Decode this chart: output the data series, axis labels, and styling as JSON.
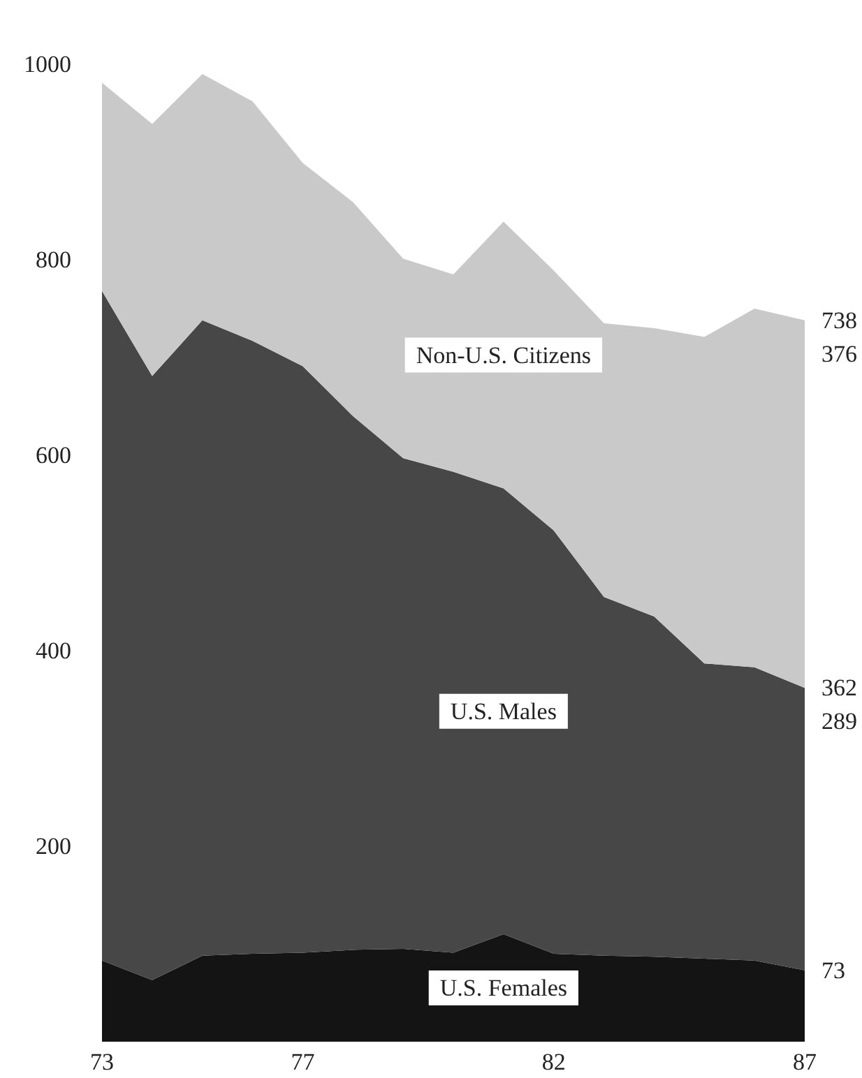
{
  "chart_data": {
    "type": "area",
    "stacked": true,
    "x": [
      73,
      74,
      75,
      76,
      77,
      78,
      79,
      80,
      81,
      82,
      83,
      84,
      85,
      86,
      87
    ],
    "xlim": [
      73,
      87
    ],
    "xticks": [
      73,
      77,
      82,
      87
    ],
    "ylim": [
      0,
      1000
    ],
    "yticks": [
      200,
      400,
      600,
      800,
      1000
    ],
    "grid": false,
    "legend": false,
    "series": [
      {
        "name": "U.S. Females",
        "color": "#141414",
        "values": [
          83,
          63,
          88,
          90,
          91,
          94,
          95,
          91,
          110,
          90,
          88,
          87,
          85,
          83,
          73
        ],
        "value_labels": [
          null,
          null,
          null,
          null,
          null,
          null,
          null,
          null,
          null,
          null,
          null,
          null,
          null,
          null,
          "73"
        ]
      },
      {
        "name": "U.S. Males",
        "color": "#474747",
        "values": [
          685,
          618,
          650,
          627,
          600,
          546,
          502,
          492,
          456,
          433,
          367,
          348,
          302,
          300,
          289
        ],
        "value_labels": [
          null,
          null,
          null,
          null,
          null,
          null,
          null,
          null,
          null,
          null,
          null,
          null,
          null,
          null,
          "289"
        ]
      },
      {
        "name": "Non-U.S. Citizens",
        "color": "#c9c9c9",
        "values": [
          213,
          258,
          252,
          245,
          208,
          219,
          204,
          202,
          273,
          266,
          280,
          295,
          334,
          367,
          376
        ],
        "value_labels": [
          null,
          null,
          null,
          null,
          null,
          null,
          null,
          null,
          null,
          null,
          null,
          null,
          null,
          null,
          "376"
        ]
      }
    ],
    "totals": [
      null,
      null,
      null,
      null,
      null,
      null,
      null,
      null,
      null,
      null,
      null,
      null,
      null,
      null,
      "738"
    ],
    "annotations": [
      {
        "text": "362",
        "x": 87,
        "y": 362
      }
    ]
  }
}
